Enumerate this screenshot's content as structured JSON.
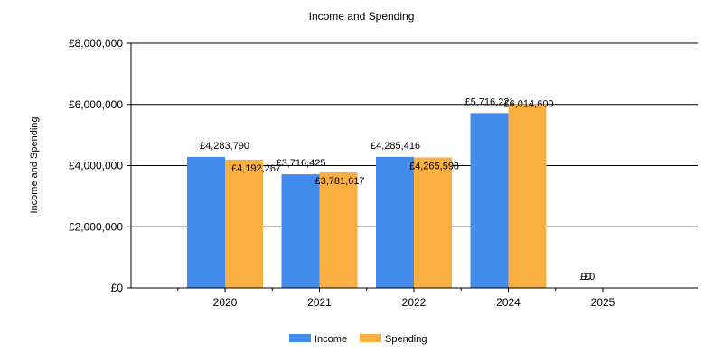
{
  "chart_data": {
    "type": "bar",
    "title": "Income and Spending",
    "xlabel": "",
    "ylabel": "Income and Spending",
    "categories": [
      "2020",
      "2021",
      "2022",
      "2024",
      "2025"
    ],
    "series": [
      {
        "name": "Income",
        "color": "#428BEC",
        "values": [
          4283790,
          3716425,
          4285416,
          5716221,
          0
        ],
        "labels": [
          "£4,283,790",
          "£3,716,425",
          "£4,285,416",
          "£5,716,221",
          "£0"
        ]
      },
      {
        "name": "Spending",
        "color": "#F9B040",
        "values": [
          4192267,
          3781617,
          4265598,
          6014600,
          0
        ],
        "labels": [
          "£4,192,267",
          "£3,781,617",
          "£4,265,598",
          "£6,014,600",
          "£0"
        ]
      }
    ],
    "ylim": [
      0,
      8000000
    ],
    "yticks": [
      0,
      2000000,
      4000000,
      6000000,
      8000000
    ],
    "ytick_labels": [
      "£0",
      "£2,000,000",
      "£4,000,000",
      "£6,000,000",
      "£8,000,000"
    ],
    "grid": true,
    "legend": "bottom-center"
  }
}
